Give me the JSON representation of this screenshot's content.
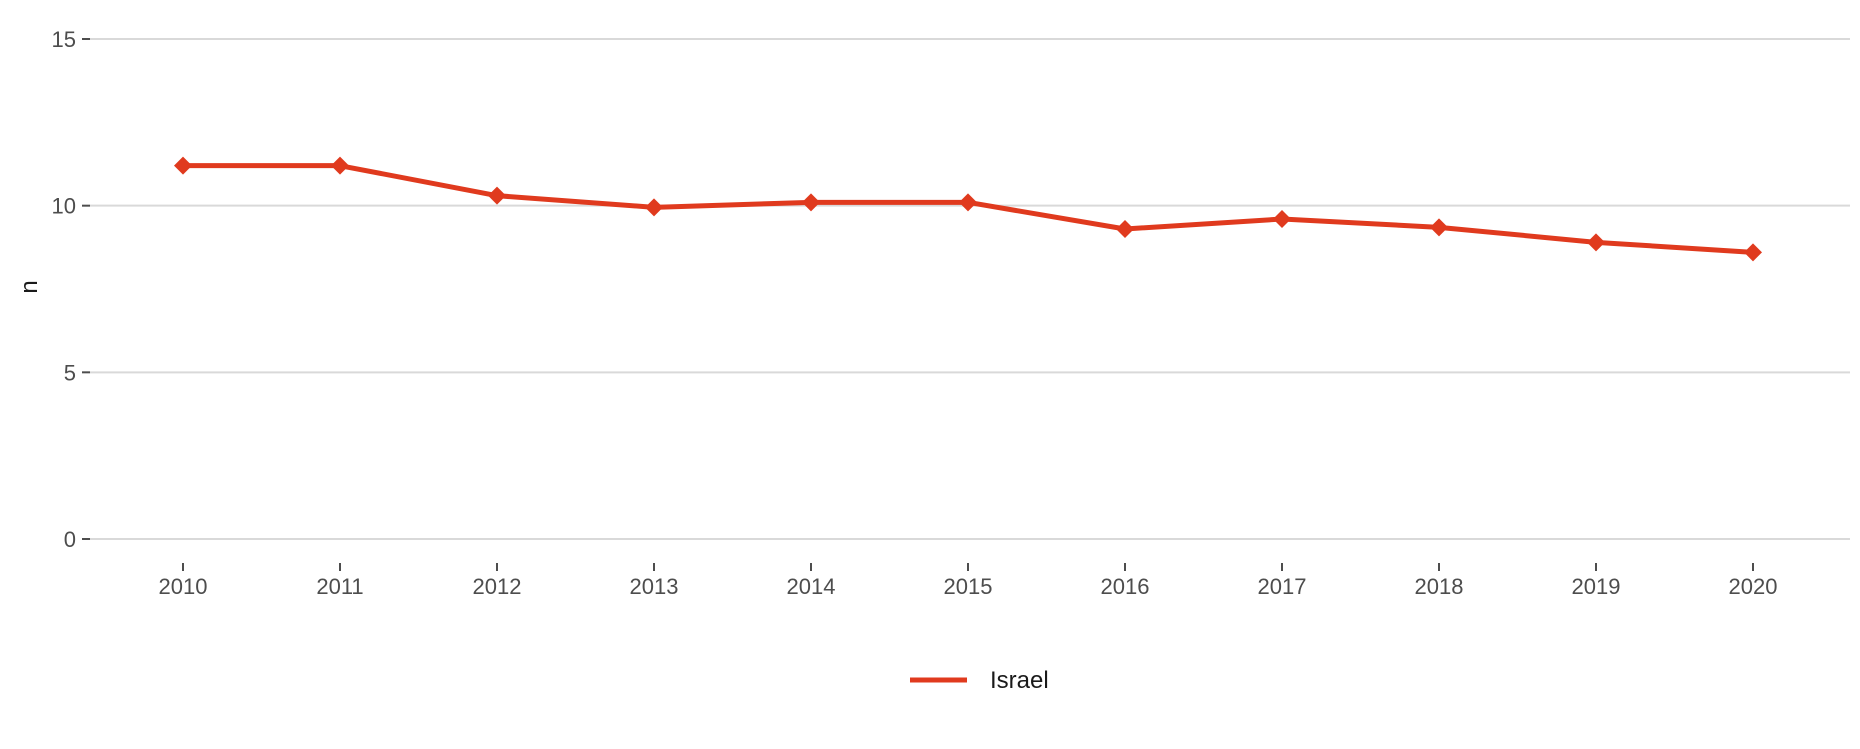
{
  "chart_data": {
    "type": "line",
    "title": "",
    "xlabel": "",
    "ylabel": "n",
    "x": [
      "2010",
      "2011",
      "2012",
      "2013",
      "2014",
      "2015",
      "2016",
      "2017",
      "2018",
      "2019",
      "2020"
    ],
    "ylim": [
      0,
      15
    ],
    "yticks": [
      "0",
      "5",
      "10",
      "15"
    ],
    "grid": "horizontal",
    "legend_position": "bottom",
    "series": [
      {
        "name": "Israel",
        "color": "#e03a1e",
        "marker": "diamond",
        "values": [
          11.2,
          11.2,
          10.3,
          9.95,
          10.1,
          10.1,
          9.3,
          9.6,
          9.35,
          8.9,
          8.6
        ]
      }
    ]
  }
}
